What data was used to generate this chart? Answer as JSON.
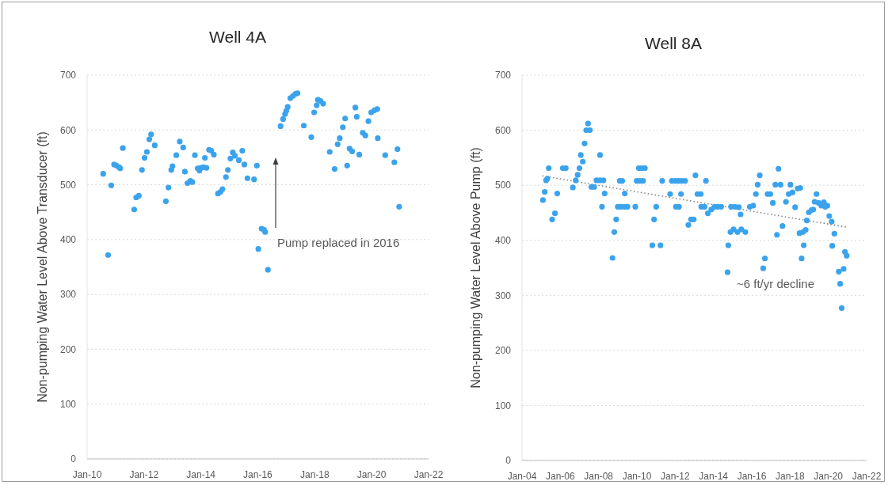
{
  "chart_data": [
    {
      "type": "scatter",
      "title": "Well 4A",
      "ylabel": "Non-pumping Water Level Above Transducer (ft)",
      "color": "#3ba3ec",
      "marker": "circle",
      "x": [
        "2010-07-26",
        "2010-09-27",
        "2010-11-07",
        "2010-12-13",
        "2011-01-12",
        "2011-02-16",
        "2011-03-02",
        "2011-04-04",
        "2011-08-28",
        "2011-09-23",
        "2011-10-26",
        "2011-12-06",
        "2012-01-08",
        "2012-02-07",
        "2012-03-09",
        "2012-04-01",
        "2012-05-18",
        "2012-10-08",
        "2012-11-10",
        "2012-12-16",
        "2013-01-01",
        "2013-02-18",
        "2013-04-04",
        "2013-05-18",
        "2013-06-09",
        "2013-07-12",
        "2013-08-18",
        "2013-09-13",
        "2013-10-15",
        "2013-11-21",
        "2013-12-13",
        "2014-01-01",
        "2014-02-03",
        "2014-02-21",
        "2014-03-13",
        "2014-04-15",
        "2014-05-14",
        "2014-06-16",
        "2014-08-07",
        "2014-09-09",
        "2014-10-04",
        "2014-11-18",
        "2014-12-13",
        "2015-01-15",
        "2015-02-14",
        "2015-03-13",
        "2015-05-03",
        "2015-06-16",
        "2015-07-12",
        "2015-08-21",
        "2015-11-14",
        "2015-12-20",
        "2016-01-08",
        "2016-02-18",
        "2016-03-20",
        "2016-04-04",
        "2016-05-10",
        "2016-10-19",
        "2016-11-21",
        "2016-12-16",
        "2017-01-01",
        "2017-01-19",
        "2017-02-21",
        "2017-03-27",
        "2017-04-29",
        "2017-05-25",
        "2017-08-14",
        "2017-11-18",
        "2017-12-24",
        "2018-01-26",
        "2018-02-10",
        "2018-03-16",
        "2018-04-19",
        "2018-07-12",
        "2018-09-13",
        "2018-10-22",
        "2018-11-18",
        "2018-12-27",
        "2019-01-26",
        "2019-02-21",
        "2019-03-24",
        "2019-04-26",
        "2019-06-06",
        "2019-06-24",
        "2019-07-26",
        "2019-09-09",
        "2019-10-12",
        "2019-11-21",
        "2019-12-27",
        "2020-02-07",
        "2020-03-13",
        "2020-03-20",
        "2020-06-24",
        "2020-10-19",
        "2020-11-28",
        "2020-12-20"
      ],
      "values": [
        520,
        372,
        499,
        537,
        535,
        532,
        530,
        567,
        455,
        477,
        480,
        527,
        549,
        560,
        583,
        592,
        572,
        470,
        495,
        527,
        534,
        554,
        579,
        568,
        524,
        503,
        507,
        505,
        554,
        530,
        526,
        531,
        532,
        549,
        531,
        564,
        562,
        555,
        484,
        487,
        492,
        514,
        527,
        548,
        559,
        553,
        545,
        562,
        537,
        512,
        510,
        535,
        383,
        420,
        418,
        414,
        345,
        607,
        620,
        629,
        635,
        642,
        658,
        662,
        666,
        667,
        608,
        587,
        632,
        645,
        655,
        653,
        648,
        560,
        529,
        574,
        585,
        605,
        621,
        535,
        566,
        561,
        641,
        624,
        555,
        595,
        590,
        616,
        632,
        636,
        638,
        585,
        554,
        541,
        565,
        460
      ],
      "xlim": [
        "2010-01-01",
        "2022-01-01"
      ],
      "xticks": [
        {
          "value": "2010-01-01",
          "label": "Jan-10"
        },
        {
          "value": "2012-01-01",
          "label": "Jan-12"
        },
        {
          "value": "2014-01-01",
          "label": "Jan-14"
        },
        {
          "value": "2016-01-01",
          "label": "Jan-16"
        },
        {
          "value": "2018-01-01",
          "label": "Jan-18"
        },
        {
          "value": "2020-01-01",
          "label": "Jan-20"
        },
        {
          "value": "2022-01-01",
          "label": "Jan-22"
        }
      ],
      "ylim": [
        0,
        700
      ],
      "yticks": [
        0,
        100,
        200,
        300,
        400,
        500,
        600,
        700
      ],
      "grid": "y",
      "annotations": [
        "Pump replaced in 2016"
      ]
    },
    {
      "type": "scatter",
      "title": "Well 8A",
      "ylabel": "Non-pumping Water Level Above Pump (ft)",
      "marker": "circle",
      "series": [
        {
          "color": "#3ba3ec",
          "x": [
            "2005-02-03",
            "2005-03-09",
            "2005-04-04",
            "2005-04-29",
            "2005-05-25",
            "2005-07-29",
            "2005-09-20",
            "2005-11-03",
            "2006-02-17",
            "2006-04-15",
            "2006-08-28",
            "2006-10-22",
            "2006-11-28",
            "2007-01-01",
            "2007-01-26",
            "2007-03-05",
            "2007-04-08",
            "2007-05-10",
            "2007-06-13",
            "2007-07-19",
            "2007-08-17",
            "2007-10-08",
            "2007-11-21",
            "2008-01-26",
            "2008-01-28",
            "2008-03-05",
            "2008-04-01",
            "2008-04-26",
            "2008-09-23",
            "2008-10-26",
            "2008-12-02",
            "2009-01-01",
            "2009-02-07",
            "2009-02-28",
            "2009-03-27",
            "2009-05-03",
            "2009-05-14",
            "2009-07-04",
            "2009-12-02",
            "2009-12-27",
            "2010-02-07",
            "2010-02-28",
            "2010-04-04",
            "2010-04-29",
            "2010-06-02",
            "2010-10-22",
            "2010-11-25",
            "2011-01-04",
            "2011-03-27",
            "2011-04-29",
            "2011-09-27",
            "2011-10-29",
            "2012-01-01",
            "2012-01-15",
            "2012-03-02",
            "2012-03-13",
            "2012-04-22",
            "2012-05-03",
            "2012-07-08",
            "2012-09-09",
            "2012-10-29",
            "2012-12-20",
            "2013-01-22",
            "2013-03-02",
            "2013-05-03",
            "2013-05-14",
            "2013-07-15",
            "2013-08-10",
            "2013-09-16",
            "2013-11-21",
            "2014-01-22",
            "2014-03-23",
            "2014-05-28",
            "2014-09-27",
            "2014-10-11",
            "2014-11-21",
            "2014-12-02",
            "2015-01-19",
            "2015-02-14",
            "2015-04-04",
            "2015-04-29",
            "2015-06-02",
            "2015-06-16",
            "2015-09-02",
            "2015-11-25",
            "2016-01-29",
            "2016-03-20",
            "2016-04-22",
            "2016-06-02",
            "2016-08-07",
            "2016-09-09",
            "2016-10-29",
            "2016-12-20",
            "2017-02-07",
            "2017-03-27",
            "2017-04-26",
            "2017-05-25",
            "2017-07-04",
            "2017-08-10",
            "2017-10-15",
            "2017-12-05",
            "2018-01-08",
            "2018-02-17",
            "2018-04-08",
            "2018-05-28",
            "2018-07-01",
            "2018-07-15",
            "2018-08-10",
            "2018-09-05",
            "2018-09-20",
            "2018-10-26",
            "2018-11-17",
            "2018-12-27",
            "2019-02-17",
            "2019-03-20",
            "2019-04-15",
            "2019-05-21",
            "2019-07-01",
            "2019-08-21",
            "2019-10-08",
            "2019-11-03",
            "2019-12-13",
            "2020-01-19",
            "2020-03-05",
            "2020-03-16",
            "2020-04-26",
            "2020-07-19",
            "2020-08-14",
            "2020-09-13",
            "2020-10-19",
            "2020-11-14",
            "2020-12-16"
          ],
          "values": [
            473,
            488,
            509,
            512,
            531,
            438,
            449,
            485,
            531,
            531,
            496,
            509,
            519,
            531,
            555,
            543,
            576,
            600,
            612,
            600,
            497,
            497,
            509,
            509,
            555,
            461,
            509,
            485,
            368,
            415,
            438,
            461,
            508,
            461,
            508,
            461,
            485,
            461,
            461,
            508,
            531,
            508,
            531,
            508,
            531,
            391,
            438,
            461,
            391,
            508,
            484,
            508,
            508,
            461,
            508,
            461,
            484,
            508,
            508,
            428,
            438,
            438,
            518,
            484,
            484,
            461,
            461,
            508,
            449,
            456,
            461,
            461,
            461,
            342,
            391,
            415,
            461,
            420,
            461,
            415,
            460,
            447,
            420,
            415,
            461,
            463,
            484,
            501,
            518,
            349,
            367,
            484,
            484,
            468,
            501,
            410,
            530,
            501,
            426,
            470,
            484,
            501,
            487,
            460,
            494,
            413,
            495,
            367,
            415,
            391,
            419,
            436,
            451,
            455,
            456,
            470,
            484,
            468,
            463,
            469,
            461,
            463,
            444,
            434,
            390,
            412,
            343,
            321,
            277,
            348,
            379,
            372
          ]
        },
        {
          "type": "line",
          "color": "#7f7f7f",
          "line_style": "dotted",
          "marker": "none",
          "x": [
            "2005-01-22",
            "2020-12-10"
          ],
          "values": [
            517,
            424
          ]
        }
      ],
      "xlim": [
        "2004-01-01",
        "2022-01-01"
      ],
      "xticks": [
        {
          "value": "2004-01-01",
          "label": "Jan-04"
        },
        {
          "value": "2006-01-01",
          "label": "Jan-06"
        },
        {
          "value": "2008-01-01",
          "label": "Jan-08"
        },
        {
          "value": "2010-01-01",
          "label": "Jan-10"
        },
        {
          "value": "2012-01-01",
          "label": "Jan-12"
        },
        {
          "value": "2014-01-01",
          "label": "Jan-14"
        },
        {
          "value": "2016-01-01",
          "label": "Jan-16"
        },
        {
          "value": "2018-01-01",
          "label": "Jan-18"
        },
        {
          "value": "2020-01-01",
          "label": "Jan-20"
        },
        {
          "value": "2022-01-01",
          "label": "Jan-22"
        }
      ],
      "ylim": [
        0,
        700
      ],
      "yticks": [
        0,
        100,
        200,
        300,
        400,
        500,
        600,
        700
      ],
      "grid": "y",
      "annotations": [
        "~6 ft/yr decline"
      ]
    }
  ]
}
